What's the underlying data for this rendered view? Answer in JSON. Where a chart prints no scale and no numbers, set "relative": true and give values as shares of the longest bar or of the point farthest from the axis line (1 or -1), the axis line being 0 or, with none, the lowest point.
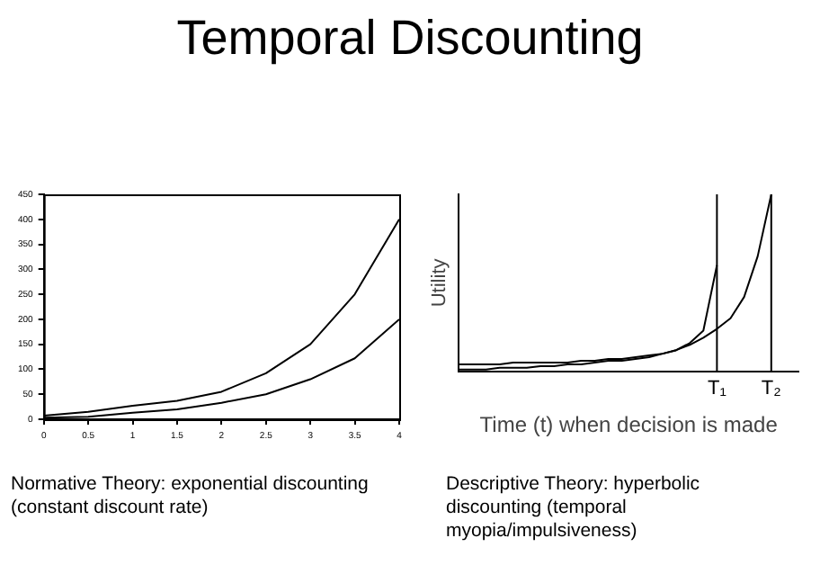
{
  "chart_data": [
    {
      "type": "line",
      "title": "Temporal Discounting",
      "x": [
        0,
        0.5,
        1,
        1.5,
        2,
        2.5,
        3,
        3.5,
        4
      ],
      "series": [
        {
          "color": "#000000",
          "values": [
            7,
            15,
            27,
            37,
            55,
            92,
            150,
            250,
            400
          ]
        },
        {
          "color": "#000000",
          "values": [
            3,
            5,
            13,
            20,
            33,
            50,
            80,
            122,
            200
          ]
        }
      ],
      "xlim": [
        0,
        4
      ],
      "xticks": [
        0,
        0.5,
        1,
        1.5,
        2,
        2.5,
        3,
        3.5,
        4
      ],
      "ylim": [
        0,
        450
      ],
      "yticks": [
        0,
        50,
        100,
        150,
        200,
        250,
        300,
        350,
        400,
        450
      ],
      "grid": false,
      "legend": false,
      "marker": "none",
      "annotations": [
        "Normative Theory: exponential discounting (constant discount rate)"
      ]
    },
    {
      "type": "line",
      "relative": true,
      "xlabel": "Time (t) when decision is made",
      "ylabel": "Utility",
      "categories": [
        null,
        null,
        null,
        null,
        null,
        null,
        null,
        null,
        null,
        null,
        null,
        null,
        null,
        null,
        null,
        null,
        null,
        null,
        null,
        "T₁",
        null,
        null,
        null,
        "T₂",
        null,
        null
      ],
      "series": [
        {
          "color": "#000000",
          "values": [
            0.04,
            0.04,
            0.04,
            0.04,
            0.05,
            0.05,
            0.05,
            0.05,
            0.05,
            0.06,
            0.06,
            0.07,
            0.07,
            0.08,
            0.09,
            0.1,
            0.12,
            0.16,
            0.23,
            0.6,
            null,
            null,
            null,
            null,
            null,
            null
          ]
        },
        {
          "color": "#000000",
          "values": [
            0.01,
            0.01,
            0.01,
            0.02,
            0.02,
            0.02,
            0.03,
            0.03,
            0.04,
            0.04,
            0.05,
            0.06,
            0.06,
            0.07,
            0.08,
            0.1,
            0.12,
            0.15,
            0.19,
            0.24,
            0.3,
            0.42,
            0.65,
            1.0,
            null,
            null
          ]
        }
      ],
      "ref_lines": [
        {
          "axis": "x",
          "value": "T₁"
        },
        {
          "axis": "x",
          "value": "T₂"
        }
      ],
      "grid": false,
      "legend": false,
      "marker": "none",
      "annotations": [
        "Descriptive Theory: hyperbolic discounting (temporal myopia/impulsiveness)"
      ]
    }
  ]
}
